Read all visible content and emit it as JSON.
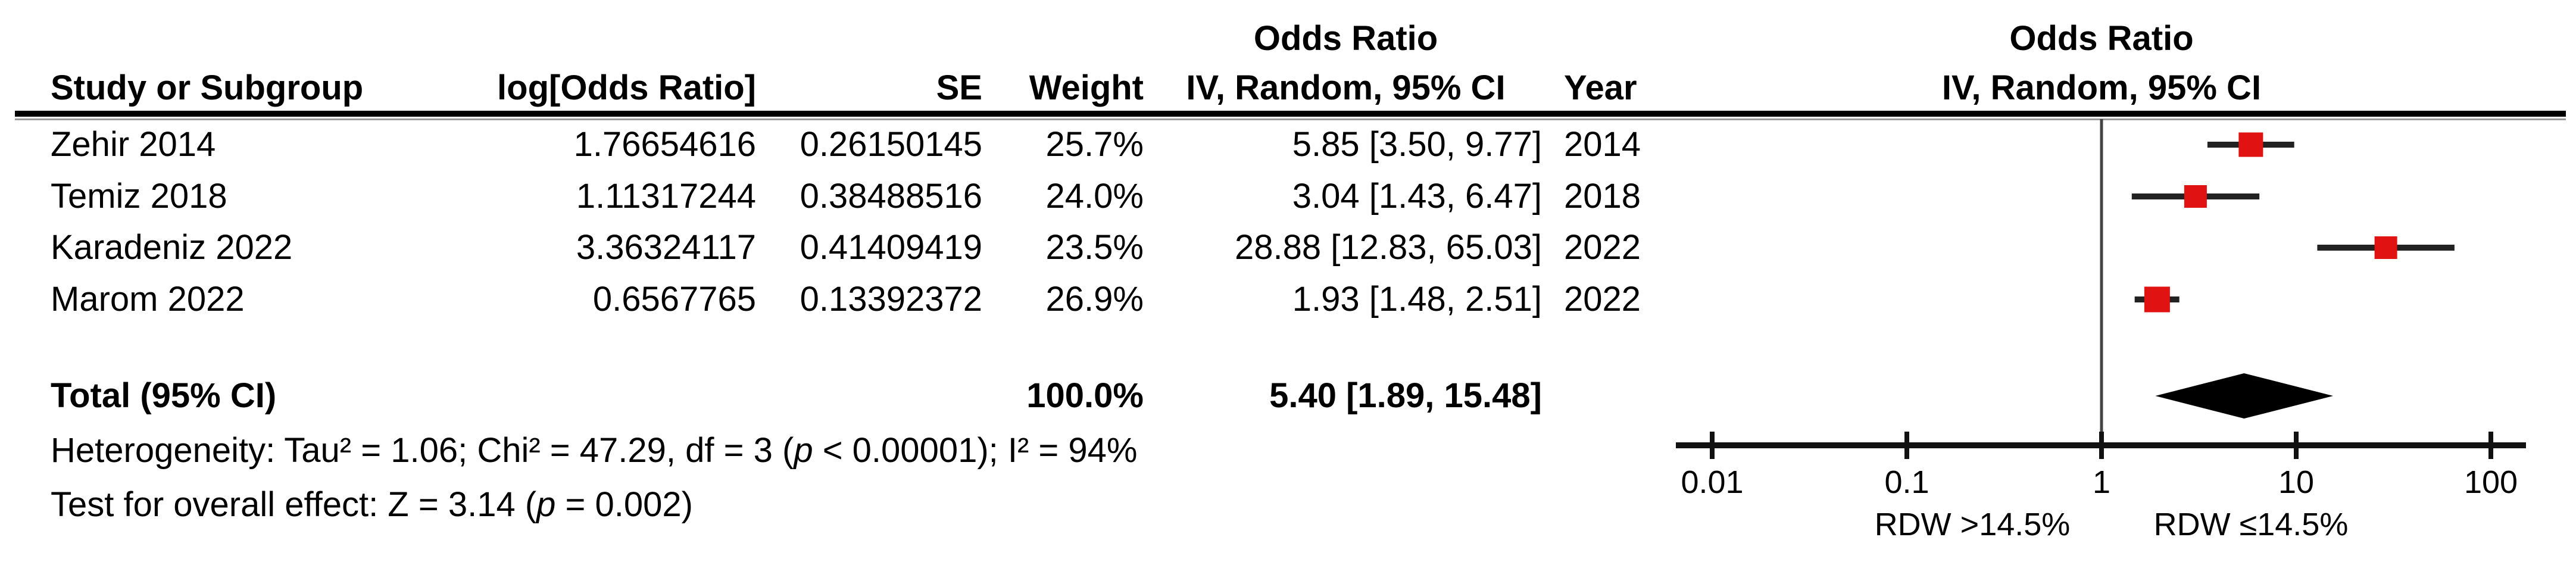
{
  "table": {
    "group_header_left_line1": "Odds Ratio",
    "group_header_right_line1": "Odds Ratio",
    "group_header_right_line2": "IV, Random, 95% CI",
    "headers": {
      "study": "Study or Subgroup",
      "logor": "log[Odds Ratio]",
      "se": "SE",
      "weight": "Weight",
      "orci": "IV, Random, 95% CI",
      "year": "Year"
    },
    "rows": [
      {
        "study": "Zehir 2014",
        "logor": "1.76654616",
        "se": "0.26150145",
        "weight": "25.7%",
        "orci": "5.85 [3.50, 9.77]",
        "year": "2014"
      },
      {
        "study": "Temiz 2018",
        "logor": "1.11317244",
        "se": "0.38488516",
        "weight": "24.0%",
        "orci": "3.04 [1.43, 6.47]",
        "year": "2018"
      },
      {
        "study": "Karadeniz 2022",
        "logor": "3.36324117",
        "se": "0.41409419",
        "weight": "23.5%",
        "orci": "28.88 [12.83, 65.03]",
        "year": "2022"
      },
      {
        "study": "Marom 2022",
        "logor": "0.6567765",
        "se": "0.13392372",
        "weight": "26.9%",
        "orci": "1.93 [1.48, 2.51]",
        "year": "2022"
      }
    ],
    "total": {
      "label": "Total (95% CI)",
      "weight": "100.0%",
      "orci": "5.40 [1.89, 15.48]"
    }
  },
  "stats": {
    "het_prefix": "Heterogeneity: Tau² = 1.06; Chi² = 47.29, df = 3 (",
    "het_p": "p",
    "het_suffix": " < 0.00001); I² = 94%",
    "test_prefix": "Test for overall effect: Z = 3.14 (",
    "test_p": "p",
    "test_suffix": " = 0.002)"
  },
  "chart_data": {
    "type": "forest",
    "scale": "log10",
    "title": "Odds Ratio",
    "subtitle": "IV, Random, 95% CI",
    "axis_ticks": [
      0.01,
      0.1,
      1,
      10,
      100
    ],
    "x_axis_labels": [
      "0.01",
      "0.1",
      "1",
      "10",
      "100"
    ],
    "xlim": [
      0.01,
      100
    ],
    "null_line_value": 1,
    "studies": [
      {
        "name": "Zehir 2014",
        "or": 5.85,
        "ci_low": 3.5,
        "ci_high": 9.77,
        "weight_pct": 25.7,
        "year": 2014
      },
      {
        "name": "Temiz 2018",
        "or": 3.04,
        "ci_low": 1.43,
        "ci_high": 6.47,
        "weight_pct": 24.0,
        "year": 2018
      },
      {
        "name": "Karadeniz 2022",
        "or": 28.88,
        "ci_low": 12.83,
        "ci_high": 65.03,
        "weight_pct": 23.5,
        "year": 2022
      },
      {
        "name": "Marom 2022",
        "or": 1.93,
        "ci_low": 1.48,
        "ci_high": 2.51,
        "weight_pct": 26.9,
        "year": 2022
      }
    ],
    "total": {
      "or": 5.4,
      "ci_low": 1.89,
      "ci_high": 15.48,
      "weight_pct": 100.0
    },
    "footer_labels": {
      "left": "RDW >14.5%",
      "right": "RDW ≤14.5%"
    },
    "marker_color": "#e01212",
    "ci_line_color": "#222222",
    "diamond_color": "#000000",
    "axis_color": "#111111"
  }
}
